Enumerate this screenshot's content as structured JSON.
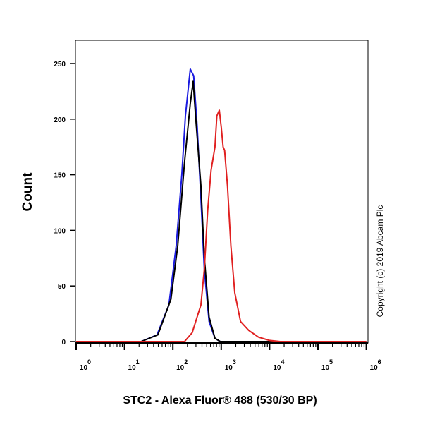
{
  "chart_data": {
    "type": "line",
    "title": "",
    "xlabel": "STC2 - Alexa Fluor® 488 (530/30 BP)",
    "ylabel": "Count",
    "x_scale": "log",
    "xlim": [
      1,
      1000000
    ],
    "ylim": [
      0,
      271
    ],
    "x_ticks": [
      {
        "base": "10",
        "exp": "0"
      },
      {
        "base": "10",
        "exp": "1"
      },
      {
        "base": "10",
        "exp": "2"
      },
      {
        "base": "10",
        "exp": "3"
      },
      {
        "base": "10",
        "exp": "4"
      },
      {
        "base": "10",
        "exp": "5"
      },
      {
        "base": "10",
        "exp": "6"
      }
    ],
    "y_ticks": [
      "0",
      "50",
      "100",
      "150",
      "200",
      "250"
    ],
    "grid": false,
    "legend": "none",
    "annotation": "Copyright (c) 2019 Abcam Plc",
    "series": [
      {
        "color": "#1a1adf",
        "points": [
          [
            1,
            0
          ],
          [
            22,
            0
          ],
          [
            47,
            6
          ],
          [
            83,
            33
          ],
          [
            117,
            86
          ],
          [
            153,
            150
          ],
          [
            182,
            203
          ],
          [
            229,
            245
          ],
          [
            269,
            239
          ],
          [
            318,
            193
          ],
          [
            380,
            129
          ],
          [
            447,
            65
          ],
          [
            562,
            18
          ],
          [
            741,
            3
          ],
          [
            955,
            0
          ],
          [
            1000000,
            0
          ]
        ]
      },
      {
        "color": "#000000",
        "points": [
          [
            1,
            0
          ],
          [
            22,
            0
          ],
          [
            49,
            6
          ],
          [
            91,
            38
          ],
          [
            126,
            86
          ],
          [
            174,
            161
          ],
          [
            229,
            214
          ],
          [
            263,
            234
          ],
          [
            295,
            203
          ],
          [
            380,
            140
          ],
          [
            447,
            76
          ],
          [
            562,
            22
          ],
          [
            741,
            3
          ],
          [
            955,
            0
          ],
          [
            1000000,
            0
          ]
        ]
      },
      {
        "color": "#e02020",
        "points": [
          [
            1,
            0
          ],
          [
            174,
            0
          ],
          [
            251,
            8
          ],
          [
            380,
            33
          ],
          [
            447,
            65
          ],
          [
            525,
            118
          ],
          [
            617,
            154
          ],
          [
            741,
            175
          ],
          [
            813,
            203
          ],
          [
            912,
            208
          ],
          [
            1000,
            193
          ],
          [
            1096,
            175
          ],
          [
            1175,
            172
          ],
          [
            1349,
            140
          ],
          [
            1585,
            86
          ],
          [
            1905,
            44
          ],
          [
            2512,
            18
          ],
          [
            3715,
            10
          ],
          [
            5888,
            4
          ],
          [
            10000,
            1
          ],
          [
            16600,
            0
          ],
          [
            1000000,
            0
          ]
        ]
      }
    ]
  }
}
